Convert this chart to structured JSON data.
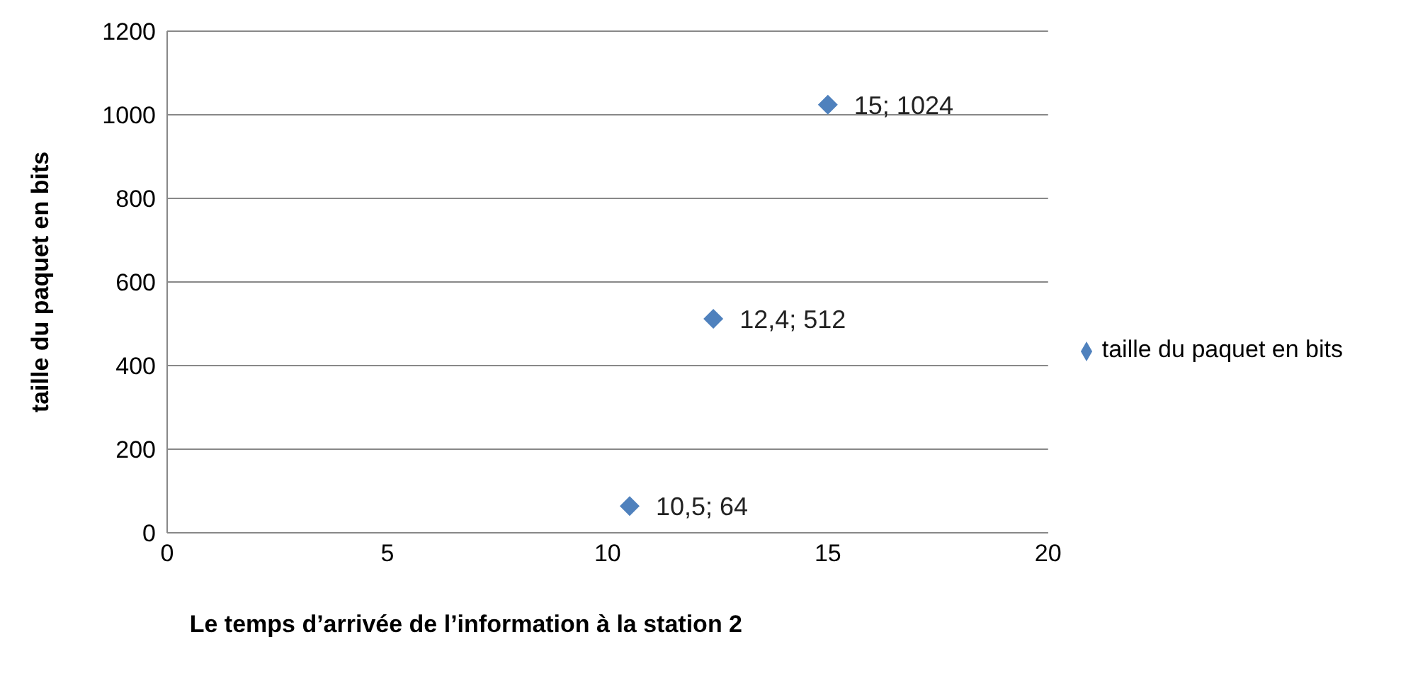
{
  "chart_data": {
    "type": "scatter",
    "xlabel": "Le temps d’arrivée de l’information à la station 2",
    "ylabel": "taille du paquet en bits",
    "x": [
      10.5,
      12.4,
      15
    ],
    "series": [
      {
        "name": "taille du paquet en bits",
        "color": "#4f81bd",
        "values": [
          64,
          512,
          1024
        ],
        "value_labels": [
          "10,5; 64",
          "12,4; 512",
          "15; 1024"
        ]
      }
    ],
    "xlim": [
      0,
      20
    ],
    "xticks": [
      0,
      5,
      10,
      15,
      20
    ],
    "ylim": [
      0,
      1200
    ],
    "yticks": [
      0,
      200,
      400,
      600,
      800,
      1000,
      1200
    ],
    "grid": "y",
    "legend": "right",
    "marker": "diamond"
  }
}
